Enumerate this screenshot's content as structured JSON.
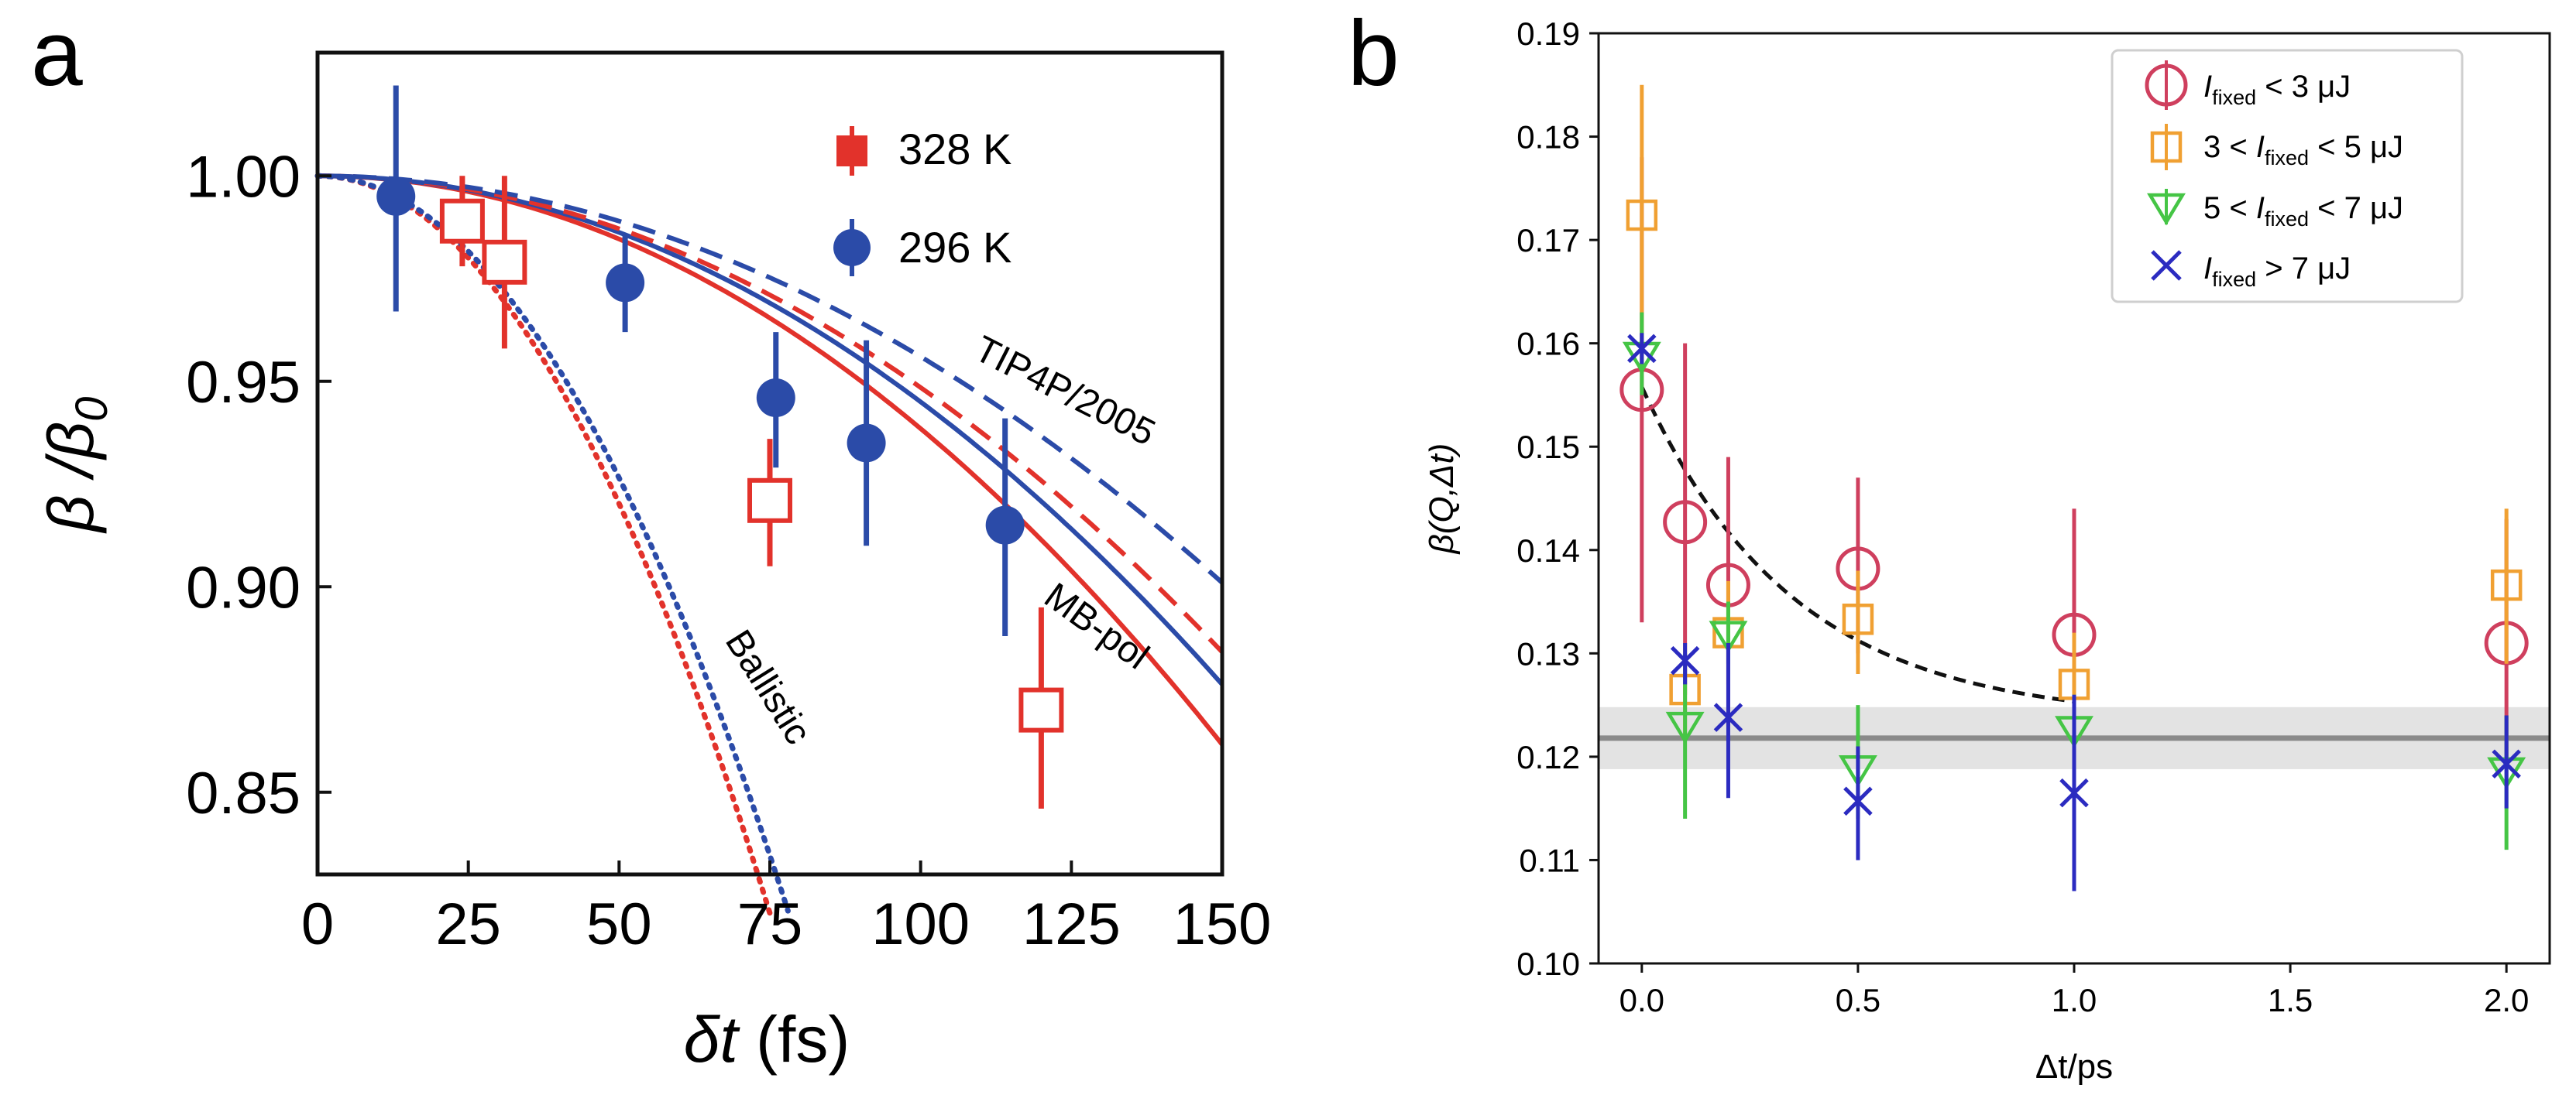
{
  "panel_a": {
    "label": "a"
  },
  "panel_b": {
    "label": "b"
  },
  "colors": {
    "red": "#e2322b",
    "blue": "#2b4ba8",
    "pink": "#cf3f5e",
    "orange": "#f0a032",
    "green": "#45c545",
    "navy": "#2b2bc0"
  },
  "chart_data": [
    {
      "type": "scatter",
      "panel": "a",
      "xlabel_symbol": "δt",
      "xlabel_unit": " (fs)",
      "ylabel_main": "β /β",
      "ylabel_sub": "0",
      "xlim": [
        0,
        150
      ],
      "ylim": [
        0.83,
        1.03
      ],
      "xticks": [
        0,
        25,
        50,
        75,
        100,
        125,
        150
      ],
      "xtick_labels": [
        "0",
        "25",
        "50",
        "75",
        "100",
        "125",
        "150"
      ],
      "yticks": [
        0.85,
        0.9,
        0.95,
        1.0
      ],
      "ytick_labels": [
        "0.85",
        "0.90",
        "0.95",
        "1.00"
      ],
      "legend": [
        "328 K",
        "296 K"
      ],
      "series": [
        {
          "name": "328 K",
          "marker": "open-square",
          "color": "#e2322b",
          "points": [
            {
              "x": 24,
              "y": 0.989,
              "lo": 0.978,
              "hi": 1.0
            },
            {
              "x": 31,
              "y": 0.979,
              "lo": 0.958,
              "hi": 1.0
            },
            {
              "x": 75,
              "y": 0.921,
              "lo": 0.905,
              "hi": 0.936
            },
            {
              "x": 120,
              "y": 0.87,
              "lo": 0.846,
              "hi": 0.895
            }
          ]
        },
        {
          "name": "296 K",
          "marker": "filled-circle",
          "color": "#2b4ba8",
          "points": [
            {
              "x": 13,
              "y": 0.995,
              "lo": 0.967,
              "hi": 1.022
            },
            {
              "x": 51,
              "y": 0.974,
              "lo": 0.962,
              "hi": 0.986
            },
            {
              "x": 76,
              "y": 0.946,
              "lo": 0.929,
              "hi": 0.962
            },
            {
              "x": 91,
              "y": 0.935,
              "lo": 0.91,
              "hi": 0.96
            },
            {
              "x": 114,
              "y": 0.915,
              "lo": 0.888,
              "hi": 0.941
            }
          ]
        }
      ],
      "curves": [
        {
          "name": "MB-pol 328 K",
          "style": "solid",
          "color": "#e2322b",
          "a": 6.15e-06
        },
        {
          "name": "MB-pol 296 K",
          "style": "solid",
          "color": "#2b4ba8",
          "a": 5.5e-06
        },
        {
          "name": "TIP4P/2005 328 K",
          "style": "dashed",
          "color": "#e2322b",
          "a": 5.15e-06
        },
        {
          "name": "TIP4P/2005 296 K",
          "style": "dashed",
          "color": "#2b4ba8",
          "a": 4.4e-06
        },
        {
          "name": "Ballistic 328 K",
          "style": "dotted",
          "color": "#e2322b",
          "a": 3.19e-05
        },
        {
          "name": "Ballistic 296 K",
          "style": "dotted",
          "color": "#2b4ba8",
          "a": 2.94e-05
        }
      ],
      "annotations": [
        {
          "text": "TIP4P/2005",
          "x": 123,
          "y": 0.945,
          "angle": 27
        },
        {
          "text": "MB-pol",
          "x": 128,
          "y": 0.888,
          "angle": 36
        },
        {
          "text": "Ballistic",
          "x": 73,
          "y": 0.874,
          "angle": 58
        }
      ]
    },
    {
      "type": "scatter",
      "panel": "b",
      "xlabel_symbol": "Δt",
      "xlabel_unit": "/ps",
      "ylabel": "β(Q,Δt)",
      "xlim": [
        -0.1,
        2.1
      ],
      "ylim": [
        0.1,
        0.19
      ],
      "xticks": [
        0,
        0.5,
        1,
        1.5,
        2
      ],
      "xtick_labels": [
        "0.0",
        "0.5",
        "1.0",
        "1.5",
        "2.0"
      ],
      "yticks": [
        0.1,
        0.11,
        0.12,
        0.13,
        0.14,
        0.15,
        0.16,
        0.17,
        0.18,
        0.19
      ],
      "ytick_labels": [
        "0.10",
        "0.11",
        "0.12",
        "0.13",
        "0.14",
        "0.15",
        "0.16",
        "0.17",
        "0.18",
        "0.19"
      ],
      "reference_line": {
        "y": 0.1218,
        "band_lo": 0.1188,
        "band_hi": 0.1248
      },
      "fit_curve": {
        "style": "dashed",
        "color": "#111111",
        "x_start": 0,
        "x_end": 1,
        "asymptote": 0.1235,
        "amplitude": 0.0323,
        "decay": 0.35
      },
      "legend": [
        {
          "parts": [
            "",
            "I",
            "fixed",
            " < 3 μJ"
          ]
        },
        {
          "parts": [
            "3 < ",
            "I",
            "fixed",
            " < 5 μJ"
          ]
        },
        {
          "parts": [
            "5 < ",
            "I",
            "fixed",
            " < 7 μJ"
          ]
        },
        {
          "parts": [
            "",
            "I",
            "fixed",
            " > 7 μJ"
          ]
        }
      ],
      "series": [
        {
          "name": "I_fixed < 3 μJ",
          "marker": "open-circle",
          "color": "#cf3f5e",
          "points": [
            {
              "x": 0,
              "y": 0.1555,
              "lo": 0.133,
              "hi": 0.178
            },
            {
              "x": 0.1,
              "y": 0.1427,
              "lo": 0.126,
              "hi": 0.16
            },
            {
              "x": 0.2,
              "y": 0.1366,
              "lo": 0.123,
              "hi": 0.149
            },
            {
              "x": 0.5,
              "y": 0.1382,
              "lo": 0.13,
              "hi": 0.147
            },
            {
              "x": 1.0,
              "y": 0.1318,
              "lo": 0.12,
              "hi": 0.144
            },
            {
              "x": 2.0,
              "y": 0.131,
              "lo": 0.119,
              "hi": 0.143
            }
          ]
        },
        {
          "name": "3 < I_fixed < 5 μJ",
          "marker": "open-square",
          "color": "#f0a032",
          "points": [
            {
              "x": 0,
              "y": 0.1724,
              "lo": 0.16,
              "hi": 0.185
            },
            {
              "x": 0.1,
              "y": 0.1265,
              "lo": 0.122,
              "hi": 0.131
            },
            {
              "x": 0.2,
              "y": 0.132,
              "lo": 0.127,
              "hi": 0.137
            },
            {
              "x": 0.5,
              "y": 0.1333,
              "lo": 0.128,
              "hi": 0.138
            },
            {
              "x": 1.0,
              "y": 0.127,
              "lo": 0.122,
              "hi": 0.132
            },
            {
              "x": 2.0,
              "y": 0.1366,
              "lo": 0.129,
              "hi": 0.144
            }
          ]
        },
        {
          "name": "5 < I_fixed < 7 μJ",
          "marker": "open-triangle-down",
          "color": "#45c545",
          "points": [
            {
              "x": 0,
              "y": 0.159,
              "lo": 0.155,
              "hi": 0.163
            },
            {
              "x": 0.1,
              "y": 0.1232,
              "lo": 0.114,
              "hi": 0.13
            },
            {
              "x": 0.2,
              "y": 0.132,
              "lo": 0.129,
              "hi": 0.135
            },
            {
              "x": 0.5,
              "y": 0.119,
              "lo": 0.114,
              "hi": 0.125
            },
            {
              "x": 1.0,
              "y": 0.1228,
              "lo": 0.119,
              "hi": 0.126
            },
            {
              "x": 2.0,
              "y": 0.1188,
              "lo": 0.111,
              "hi": 0.124
            }
          ]
        },
        {
          "name": "I_fixed > 7 μJ",
          "marker": "x",
          "color": "#2b2bc0",
          "points": [
            {
              "x": 0,
              "y": 0.1595,
              "lo": 0.158,
              "hi": 0.161
            },
            {
              "x": 0.1,
              "y": 0.1293,
              "lo": 0.127,
              "hi": 0.131
            },
            {
              "x": 0.2,
              "y": 0.1238,
              "lo": 0.116,
              "hi": 0.131
            },
            {
              "x": 0.5,
              "y": 0.1157,
              "lo": 0.11,
              "hi": 0.121
            },
            {
              "x": 1.0,
              "y": 0.1165,
              "lo": 0.107,
              "hi": 0.126
            },
            {
              "x": 2.0,
              "y": 0.1193,
              "lo": 0.115,
              "hi": 0.124
            }
          ]
        }
      ]
    }
  ]
}
